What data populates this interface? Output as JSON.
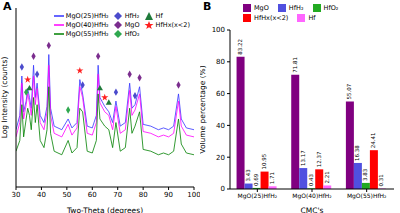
{
  "chart_data": [
    {
      "type": "line",
      "title": "A",
      "x_label": "Two-Theta (degrees)",
      "y_label": "Log Intensity (counts)",
      "x": [
        30,
        31.5,
        32.3,
        33,
        34,
        34.6,
        35.3,
        36,
        36.9,
        37.6,
        38.3,
        39.5,
        41,
        42.2,
        42.9,
        43.6,
        45,
        48,
        50.5,
        52,
        54,
        55.1,
        56.2,
        58,
        60,
        61.6,
        62.3,
        63,
        64.9,
        66.5,
        68,
        69.3,
        71,
        73,
        74.7,
        75.6,
        76.8,
        78.6,
        80,
        83,
        86,
        88,
        90,
        92,
        93.9,
        95,
        97,
        100
      ],
      "xlim": [
        30,
        100
      ],
      "xticks": [
        30,
        40,
        50,
        60,
        70,
        80,
        90,
        100
      ],
      "ylim": [
        0,
        100
      ],
      "tick_labels": "x",
      "legend": "upper right",
      "series": [
        {
          "name": "MgO(25)HfH₂",
          "color": "#3333ff",
          "values": [
            32,
            40,
            62,
            42,
            48,
            55,
            50,
            44,
            68,
            50,
            58,
            40,
            36,
            45,
            74,
            44,
            34,
            32,
            38,
            33,
            36,
            60,
            52,
            34,
            33,
            40,
            68,
            50,
            45,
            42,
            36,
            48,
            34,
            36,
            58,
            44,
            46,
            56,
            35,
            34,
            32,
            33,
            32,
            34,
            52,
            38,
            33,
            32
          ]
        },
        {
          "name": "MgO(40)HfH₂",
          "color": "#ff00ff",
          "values": [
            28,
            36,
            58,
            38,
            46,
            52,
            47,
            40,
            62,
            46,
            55,
            36,
            32,
            42,
            68,
            40,
            30,
            28,
            35,
            29,
            33,
            56,
            50,
            30,
            29,
            36,
            63,
            47,
            42,
            40,
            32,
            45,
            30,
            32,
            54,
            40,
            43,
            52,
            31,
            30,
            28,
            29,
            28,
            30,
            48,
            34,
            29,
            28
          ]
        },
        {
          "name": "MgO(55)HfH₂",
          "color": "#008000",
          "values": [
            20,
            26,
            46,
            28,
            38,
            44,
            40,
            32,
            50,
            36,
            46,
            26,
            22,
            32,
            56,
            30,
            20,
            18,
            26,
            19,
            22,
            44,
            42,
            20,
            19,
            26,
            52,
            38,
            34,
            32,
            22,
            36,
            20,
            22,
            44,
            30,
            34,
            42,
            21,
            20,
            18,
            19,
            18,
            20,
            38,
            24,
            19,
            18
          ]
        },
        {
          "name": "HfH₂",
          "type": "scatter",
          "marker": "diamond",
          "color": "#4b4bcc",
          "x": [
            32.3,
            38.3,
            56.2,
            69.3,
            76.8
          ],
          "values": [
            67,
            63,
            57,
            53,
            51
          ]
        },
        {
          "name": "MgO",
          "type": "scatter",
          "marker": "diamond",
          "color": "#7b2d8e",
          "x": [
            36.9,
            42.9,
            62.3,
            74.7,
            78.6,
            93.9
          ],
          "values": [
            73,
            79,
            73,
            63,
            61,
            57
          ]
        },
        {
          "name": "HfO₂",
          "type": "scatter",
          "marker": "diamond",
          "color": "#2fa84f",
          "x": [
            34,
            50.5
          ],
          "values": [
            53,
            43
          ]
        },
        {
          "name": "Hf",
          "type": "scatter",
          "marker": "triangle",
          "color": "#1f7a3a",
          "x": [
            35.3,
            63,
            66.5
          ],
          "values": [
            55,
            55,
            47
          ]
        },
        {
          "name": "HfHx(x<2)",
          "type": "scatter",
          "marker": "star",
          "color": "#ff2020",
          "x": [
            34.6,
            55.1,
            64.9
          ],
          "values": [
            60,
            65,
            50
          ]
        }
      ]
    },
    {
      "type": "bar",
      "title": "B",
      "x_label": "CMC's",
      "y_label": "Volume percentage (%)",
      "categories": [
        "MgO(25)HfH₂",
        "MgO(40)HfH₂",
        "MgO(55)HfH₂"
      ],
      "ylim": [
        0,
        100
      ],
      "yticks": [
        0,
        20,
        40,
        60,
        80,
        100
      ],
      "data_labels": true,
      "legend": "upper center",
      "series": [
        {
          "name": "MgO",
          "color": "#800080",
          "values": [
            83.22,
            71.81,
            55.07
          ]
        },
        {
          "name": "HfH₂",
          "color": "#5050e0",
          "values": [
            3.43,
            13.17,
            16.38
          ]
        },
        {
          "name": "HfO₂",
          "color": "#22aa22",
          "values": [
            0.69,
            0.43,
            3.83
          ]
        },
        {
          "name": "HfHx(x<2)",
          "color": "#ff0000",
          "values": [
            10.95,
            12.37,
            24.41
          ]
        },
        {
          "name": "Hf",
          "color": "#ff66ff",
          "values": [
            1.71,
            2.21,
            0.31
          ]
        }
      ]
    }
  ]
}
